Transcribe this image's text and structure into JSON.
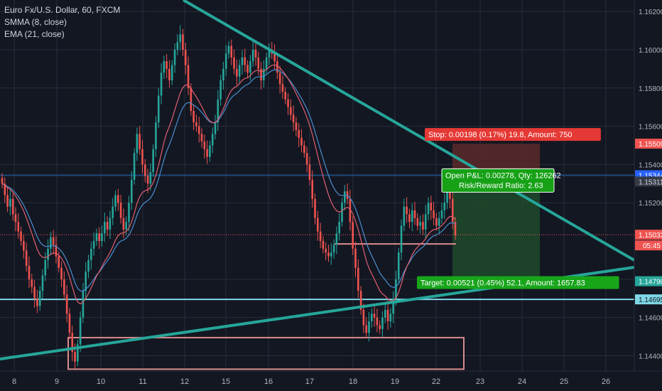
{
  "legend": {
    "title": "Euro Fx/U.S. Dollar, 60, FXCM",
    "smma": "SMMA (8, close)",
    "ema": "EMA (21, close)"
  },
  "colors": {
    "background": "#131722",
    "grid": "#2a2e39",
    "up_candle": "#26a69a",
    "down_candle": "#ef5350",
    "trendline": "#26a69a",
    "level_blue": "#1e3a5f",
    "level_cyan": "#7fd7e6",
    "box": "#d98c8c",
    "smma": "#e06070",
    "ema": "#4a8fd0",
    "stop_zone": "#5a2a2a",
    "target_zone": "#1e4a2a"
  },
  "chart_data": {
    "type": "candlestick",
    "symbol": "Euro Fx/U.S. Dollar",
    "timeframe": "60",
    "source": "FXCM",
    "x_tick_labels": [
      "8",
      "9",
      "10",
      "11",
      "12",
      "15",
      "16",
      "17",
      "18",
      "19",
      "22",
      "23",
      "24",
      "25",
      "26"
    ],
    "y_tick_labels": [
      "1.16200",
      "1.16000",
      "1.15800",
      "1.15600",
      "1.15400",
      "1.15200",
      "1.14800",
      "1.14600",
      "1.14400"
    ],
    "ylim": [
      1.1432,
      1.1626
    ],
    "price_tags": [
      {
        "value": 1.15509,
        "label": "1.15509",
        "color": "#ef5350",
        "text_color": "#ffffff"
      },
      {
        "value": 1.15344,
        "label": "1.15344",
        "color": "#2962ff",
        "text_color": "#ffffff"
      },
      {
        "value": 1.15311,
        "label": "1.15311",
        "color": "#363a45",
        "text_color": "#d1d4dc"
      },
      {
        "value": 1.15033,
        "label": "1.15033",
        "color": "#ef5350",
        "text_color": "#ffffff"
      },
      {
        "value": 1.1479,
        "label": "1.14790",
        "color": "#26a69a",
        "text_color": "#ffffff"
      },
      {
        "value": 1.14695,
        "label": "1.14695",
        "color": "#7fd7e6",
        "text_color": "#131722"
      }
    ],
    "countdown": "05:45",
    "horizontal_lines": [
      {
        "name": "resistance-line",
        "value": 1.15344,
        "color": "#1e4a7a"
      },
      {
        "name": "support-line",
        "value": 1.14695,
        "color": "#7fd7e6"
      },
      {
        "name": "last-price-line",
        "value": 1.15033,
        "color": "#ef5350"
      }
    ],
    "position": {
      "entry": 1.15311,
      "stop": 1.15509,
      "target": 1.1479,
      "stop_label": "Stop: 0.00198 (0.17%) 19.8, Amount: 750",
      "target_label": "Target: 0.00521 (0.45%) 52.1, Amount: 1657.83",
      "pnl_label": "Open P&L: 0.00278, Qty: 126262",
      "rr_label": "Risk/Reward Ratio: 2.63"
    },
    "close_series": [
      1.153,
      1.1524,
      1.1518,
      1.1522,
      1.1514,
      1.151,
      1.1505,
      1.15,
      1.1495,
      1.1487,
      1.148,
      1.1476,
      1.147,
      1.1466,
      1.1474,
      1.1482,
      1.149,
      1.1496,
      1.1502,
      1.1498,
      1.1492,
      1.1486,
      1.148,
      1.1472,
      1.1462,
      1.1452,
      1.1442,
      1.1437,
      1.1446,
      1.146,
      1.1474,
      1.1484,
      1.149,
      1.1496,
      1.15,
      1.1504,
      1.15,
      1.1504,
      1.151,
      1.1506,
      1.1512,
      1.1518,
      1.1524,
      1.152,
      1.1512,
      1.1506,
      1.151,
      1.152,
      1.1532,
      1.1546,
      1.1556,
      1.1548,
      1.154,
      1.1534,
      1.153,
      1.1536,
      1.1548,
      1.1562,
      1.1576,
      1.1588,
      1.1594,
      1.159,
      1.1584,
      1.1592,
      1.16,
      1.1604,
      1.1608,
      1.16,
      1.1592,
      1.158,
      1.1568,
      1.1562,
      1.156,
      1.1556,
      1.1552,
      1.1548,
      1.1544,
      1.155,
      1.1556,
      1.1562,
      1.1574,
      1.1584,
      1.159,
      1.1598,
      1.1602,
      1.1596,
      1.159,
      1.1586,
      1.1592,
      1.1596,
      1.1592,
      1.1588,
      1.1594,
      1.16,
      1.1596,
      1.159,
      1.1584,
      1.159,
      1.1596,
      1.16,
      1.1598,
      1.1594,
      1.1588,
      1.1582,
      1.1578,
      1.1574,
      1.157,
      1.1566,
      1.1562,
      1.1558,
      1.1554,
      1.155,
      1.1546,
      1.154,
      1.1532,
      1.1522,
      1.1512,
      1.1505,
      1.15,
      1.1496,
      1.1494,
      1.1492,
      1.1494,
      1.1498,
      1.1504,
      1.151,
      1.152,
      1.1526,
      1.1522,
      1.151,
      1.1496,
      1.1486,
      1.1474,
      1.1464,
      1.1456,
      1.1452,
      1.1458,
      1.1462,
      1.146,
      1.1456,
      1.1454,
      1.146,
      1.1464,
      1.1458,
      1.1462,
      1.147,
      1.148,
      1.1494,
      1.1508,
      1.1518,
      1.1514,
      1.151,
      1.1516,
      1.1512,
      1.1508,
      1.151,
      1.1506,
      1.1514,
      1.152,
      1.1516,
      1.1512,
      1.1508,
      1.1512,
      1.1516,
      1.152,
      1.1526,
      1.1522,
      1.151,
      1.1503
    ]
  }
}
